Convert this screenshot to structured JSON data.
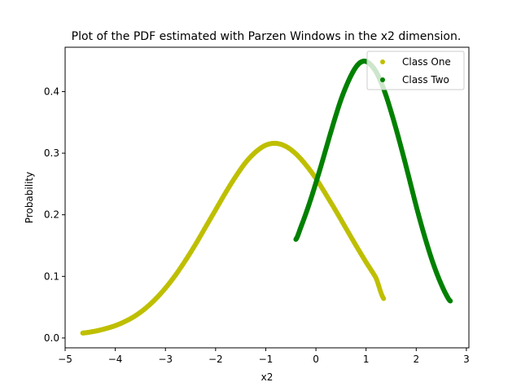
{
  "chart_data": {
    "type": "scatter",
    "title": "Plot of the PDF estimated with Parzen Windows in the x2 dimension.",
    "xlabel": "x2",
    "ylabel": "Probability",
    "xlim": [
      -5,
      3.05
    ],
    "ylim": [
      -0.016,
      0.472
    ],
    "xticks": [
      -5,
      -4,
      -3,
      -2,
      -1,
      0,
      1,
      2,
      3
    ],
    "yticks": [
      0.0,
      0.1,
      0.2,
      0.3,
      0.4
    ],
    "grid": false,
    "legend_position": "top-right",
    "series": [
      {
        "name": "Class One",
        "color": "#bfbf00",
        "marker": "dot",
        "x": [
          -4.65,
          -4.4,
          -4.2,
          -4.0,
          -3.8,
          -3.6,
          -3.4,
          -3.2,
          -3.0,
          -2.8,
          -2.6,
          -2.4,
          -2.2,
          -2.0,
          -1.8,
          -1.6,
          -1.4,
          -1.2,
          -1.0,
          -0.8,
          -0.6,
          -0.4,
          -0.2,
          0.0,
          0.2,
          0.4,
          0.6,
          0.8,
          1.0,
          1.2,
          1.35
        ],
        "y": [
          0.008,
          0.011,
          0.015,
          0.02,
          0.027,
          0.036,
          0.048,
          0.063,
          0.081,
          0.102,
          0.126,
          0.152,
          0.18,
          0.208,
          0.236,
          0.262,
          0.285,
          0.302,
          0.313,
          0.316,
          0.311,
          0.299,
          0.281,
          0.259,
          0.233,
          0.206,
          0.178,
          0.15,
          0.123,
          0.097,
          0.064
        ]
      },
      {
        "name": "Class Two",
        "color": "#008000",
        "marker": "dot",
        "x": [
          -0.4,
          -0.3,
          -0.2,
          -0.1,
          0.0,
          0.1,
          0.2,
          0.3,
          0.4,
          0.5,
          0.6,
          0.7,
          0.8,
          0.9,
          1.0,
          1.1,
          1.2,
          1.3,
          1.4,
          1.5,
          1.6,
          1.7,
          1.8,
          1.9,
          2.0,
          2.1,
          2.2,
          2.3,
          2.4,
          2.5,
          2.6,
          2.68
        ],
        "y": [
          0.16,
          0.18,
          0.202,
          0.226,
          0.252,
          0.279,
          0.307,
          0.335,
          0.362,
          0.387,
          0.408,
          0.426,
          0.44,
          0.448,
          0.449,
          0.443,
          0.432,
          0.415,
          0.393,
          0.367,
          0.339,
          0.309,
          0.278,
          0.246,
          0.214,
          0.184,
          0.156,
          0.13,
          0.107,
          0.087,
          0.07,
          0.06
        ]
      }
    ]
  }
}
